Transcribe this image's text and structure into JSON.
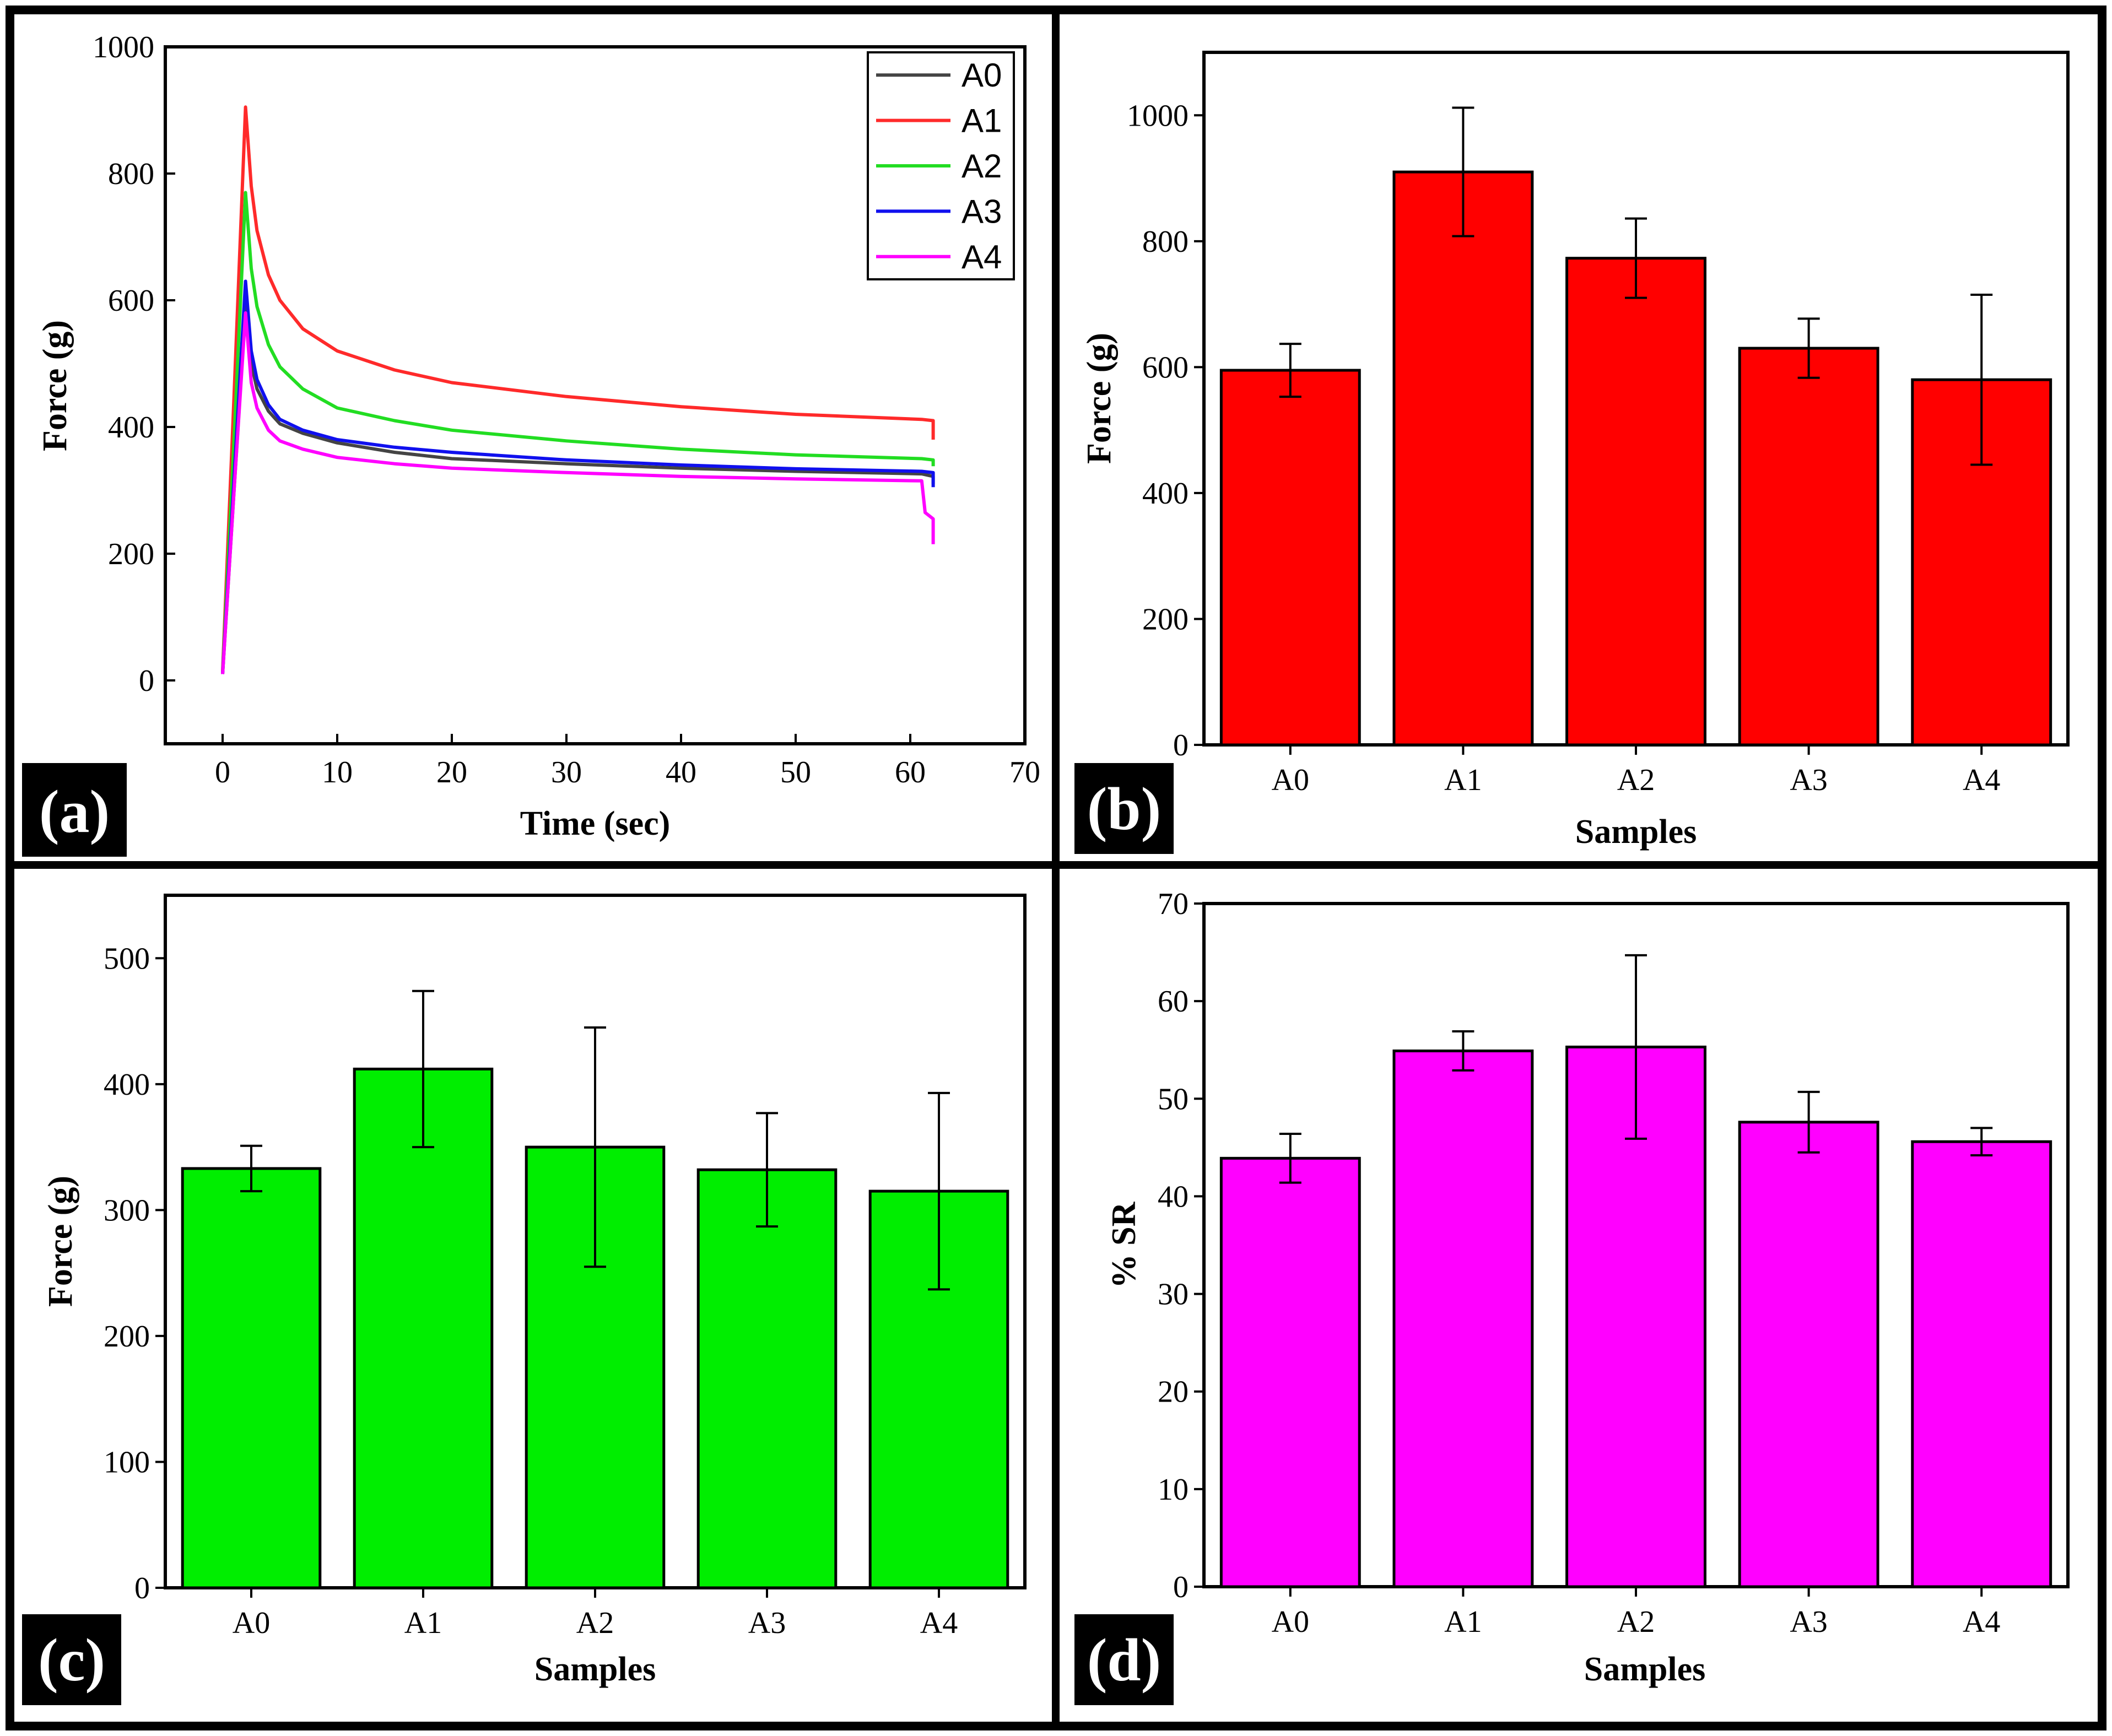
{
  "chart_data": [
    {
      "panel": "(a)",
      "type": "line",
      "xlabel": "Time (sec)",
      "ylabel": "Force (g)",
      "xlim": [
        -5,
        70
      ],
      "ylim": [
        -100,
        1000
      ],
      "xticks": [
        0,
        10,
        20,
        30,
        40,
        50,
        60,
        70
      ],
      "yticks": [
        0,
        200,
        400,
        600,
        800,
        1000
      ],
      "legend_position": "top-right",
      "series": [
        {
          "name": "A0",
          "color": "#444444",
          "x": [
            0,
            1,
            2,
            2.5,
            3,
            4,
            5,
            7,
            10,
            15,
            20,
            30,
            40,
            50,
            61,
            62,
            62
          ],
          "y": [
            10,
            300,
            590,
            500,
            460,
            425,
            405,
            390,
            375,
            360,
            350,
            342,
            335,
            330,
            326,
            322,
            310
          ]
        },
        {
          "name": "A1",
          "color": "#ff2a2a",
          "x": [
            0,
            1,
            2,
            2.5,
            3,
            4,
            5,
            7,
            10,
            15,
            20,
            30,
            40,
            50,
            61,
            62,
            62
          ],
          "y": [
            15,
            450,
            905,
            780,
            710,
            640,
            600,
            555,
            520,
            490,
            470,
            448,
            432,
            420,
            412,
            410,
            380
          ]
        },
        {
          "name": "A2",
          "color": "#22dd22",
          "x": [
            0,
            1,
            2,
            2.5,
            3,
            4,
            5,
            7,
            10,
            15,
            20,
            30,
            40,
            50,
            61,
            62,
            62
          ],
          "y": [
            12,
            380,
            770,
            650,
            590,
            530,
            495,
            460,
            430,
            410,
            395,
            378,
            365,
            356,
            350,
            348,
            338
          ]
        },
        {
          "name": "A3",
          "color": "#1010ee",
          "x": [
            0,
            1,
            2,
            2.5,
            3,
            4,
            5,
            7,
            10,
            15,
            20,
            30,
            40,
            50,
            61,
            62,
            62
          ],
          "y": [
            10,
            320,
            630,
            520,
            475,
            435,
            412,
            395,
            380,
            368,
            360,
            348,
            340,
            334,
            330,
            328,
            305
          ]
        },
        {
          "name": "A4",
          "color": "#ff00ff",
          "x": [
            0,
            1,
            2,
            2.5,
            3,
            4,
            5,
            7,
            10,
            15,
            20,
            30,
            40,
            50,
            61,
            61.3,
            62,
            62
          ],
          "y": [
            10,
            300,
            580,
            470,
            430,
            395,
            378,
            365,
            352,
            342,
            335,
            328,
            322,
            318,
            315,
            265,
            255,
            215
          ]
        }
      ]
    },
    {
      "panel": "(b)",
      "type": "bar",
      "xlabel": "Samples",
      "ylabel": "Force (g)",
      "categories": [
        "A0",
        "A1",
        "A2",
        "A3",
        "A4"
      ],
      "values": [
        595,
        910,
        773,
        630,
        580
      ],
      "errors": [
        42,
        102,
        63,
        47,
        135
      ],
      "ylim": [
        0,
        1100
      ],
      "yticks": [
        0,
        200,
        400,
        600,
        800,
        1000
      ],
      "color": "#ff0000"
    },
    {
      "panel": "(c)",
      "type": "bar",
      "xlabel": "Samples",
      "ylabel": "Force (g)",
      "categories": [
        "A0",
        "A1",
        "A2",
        "A3",
        "A4"
      ],
      "values": [
        333,
        412,
        350,
        332,
        315
      ],
      "errors": [
        18,
        62,
        95,
        45,
        78
      ],
      "ylim": [
        0,
        550
      ],
      "yticks": [
        0,
        100,
        200,
        300,
        400,
        500
      ],
      "color": "#00ee00"
    },
    {
      "panel": "(d)",
      "type": "bar",
      "xlabel": "Samples",
      "ylabel": "% SR",
      "categories": [
        "A0",
        "A1",
        "A2",
        "A3",
        "A4"
      ],
      "values": [
        43.9,
        54.9,
        55.3,
        47.6,
        45.6
      ],
      "errors": [
        2.5,
        2.0,
        9.4,
        3.1,
        1.4
      ],
      "ylim": [
        0,
        70
      ],
      "yticks": [
        0,
        10,
        20,
        30,
        40,
        50,
        60,
        70
      ],
      "color": "#ff00ff"
    }
  ]
}
